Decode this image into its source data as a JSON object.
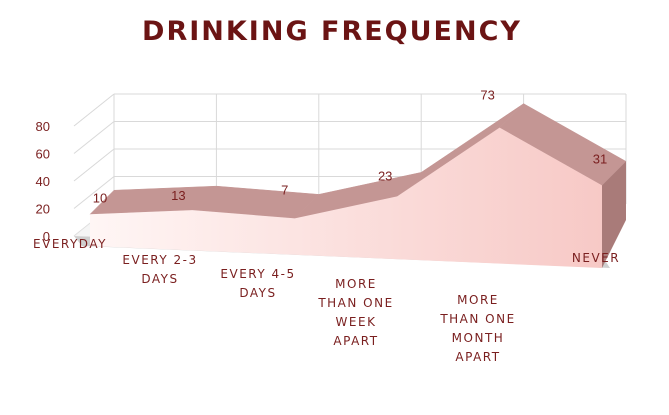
{
  "chart_data": {
    "type": "area",
    "title": "DRINKING FREQUENCY",
    "categories": [
      [
        "EVERYDAY"
      ],
      [
        "EVERY 2-3",
        "DAYS"
      ],
      [
        "EVERY 4-5",
        "DAYS"
      ],
      [
        "MORE",
        "THAN ONE",
        "WEEK",
        "APART"
      ],
      [
        "MORE",
        "THAN ONE",
        "MONTH",
        "APART"
      ],
      [
        "NEVER"
      ]
    ],
    "values": [
      10,
      13,
      7,
      23,
      73,
      31
    ],
    "ylim": [
      0,
      80
    ],
    "yticks": [
      "0",
      "20",
      "40",
      "60",
      "80"
    ],
    "grid": true,
    "legend": "none",
    "three_d": true
  },
  "colors": {
    "title": "#6b1414",
    "text": "#7a1f1f",
    "grid": "#d9d9d9",
    "area_front": "#f7c9c6",
    "area_front_light": "#fff6f5",
    "area_top": "#c49694",
    "area_side": "#a97b79",
    "floor": "#cfcfcf"
  }
}
